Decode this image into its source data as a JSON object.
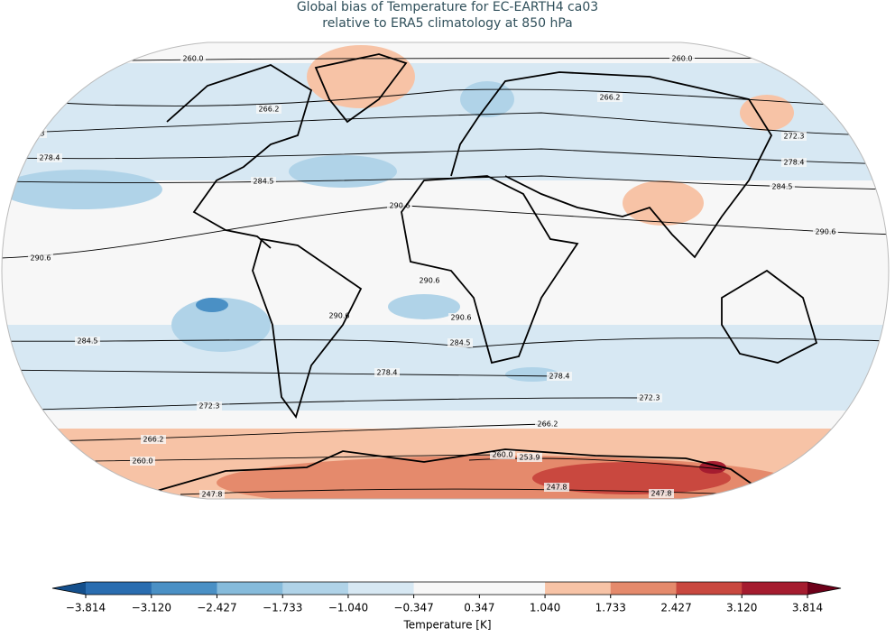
{
  "title": [
    "Global bias of Temperature for EC-EARTH4 ca03",
    "relative to ERA5 climatology at 850 hPa"
  ],
  "map": {
    "contour_levels": [
      247.8,
      253.9,
      {
        "value": 260.0,
        "label": "260.0"
      },
      266.2,
      272.3,
      278.4,
      284.5,
      290.6
    ]
  },
  "colorbar": {
    "label": "Temperature [K]",
    "ticks": [
      {
        "value": -3.814,
        "label": "−3.814"
      },
      {
        "value": -3.12,
        "label": "−3.120"
      },
      {
        "value": -2.427,
        "label": "−2.427"
      },
      {
        "value": -1.733,
        "label": "−1.733"
      },
      {
        "value": -1.04,
        "label": "−1.040"
      },
      {
        "value": -0.347,
        "label": "−0.347"
      },
      {
        "value": 0.347,
        "label": "0.347"
      },
      {
        "value": 1.04,
        "label": "1.040"
      },
      {
        "value": 1.733,
        "label": "1.733"
      },
      {
        "value": 2.427,
        "label": "2.427"
      },
      {
        "value": 3.12,
        "label": "3.120"
      },
      {
        "value": 3.814,
        "label": "3.814"
      }
    ],
    "colors": [
      "#2a6db0",
      "#4a90c5",
      "#86bbdb",
      "#b0d3e8",
      "#d7e8f3",
      "#f7f7f7",
      "#f7f7f7",
      "#f7c3a6",
      "#e58a6c",
      "#c9483f",
      "#a51c2f"
    ],
    "extend_colors": [
      "#144f8c",
      "#6d0019"
    ]
  }
}
